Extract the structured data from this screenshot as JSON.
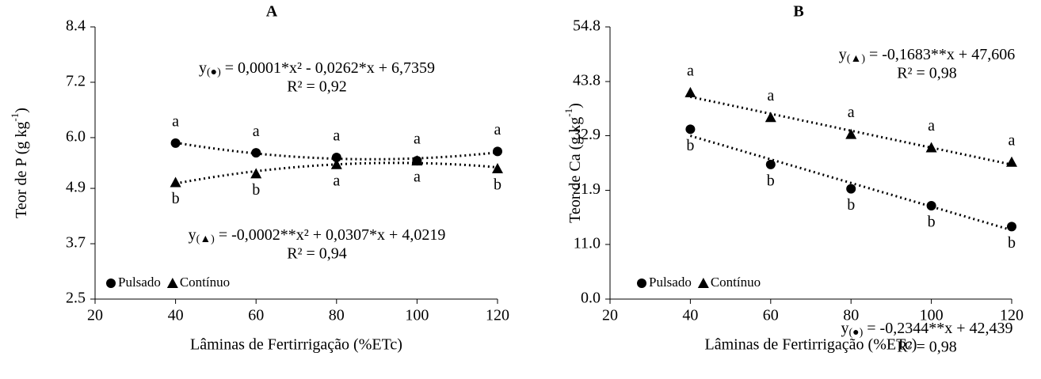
{
  "chart_data": [
    {
      "type": "scatter",
      "title": "A",
      "xlabel": "Lâminas de Fertirrigação (%ETc)",
      "ylabel": "Teor de P (g kg",
      "ylabel_sup": "-1",
      "ylabel_end": ")",
      "x": [
        40,
        60,
        80,
        100,
        120
      ],
      "xlim": [
        20,
        120
      ],
      "xticks": [
        20,
        40,
        60,
        80,
        100,
        120
      ],
      "ylim": [
        2.5,
        8.4
      ],
      "yticks": [
        2.5,
        3.7,
        4.9,
        {
          "value": 6,
          "label": "6.0"
        },
        7.2,
        8.4
      ],
      "trendline": "quadratic",
      "series": [
        {
          "name": "Pulsado",
          "marker": "circle",
          "color": "#000000",
          "values": [
            5.88,
            5.67,
            5.57,
            5.5,
            5.7
          ],
          "labels": [
            "a",
            "a",
            "a",
            "a",
            "a"
          ],
          "label_position": "above"
        },
        {
          "name": "Contínuo",
          "marker": "triangle",
          "color": "#000000",
          "values": [
            5.03,
            5.22,
            5.42,
            5.5,
            5.33
          ],
          "labels": [
            "b",
            "b",
            "a",
            "a",
            "b"
          ],
          "label_position": "below"
        }
      ],
      "annotations": [
        {
          "text": "y",
          "sub": "(●)",
          "rest": " = 0,0001*x² - 0,0262*x + 6,7359",
          "r2": "R² = 0,92"
        },
        {
          "text": "y",
          "sub": "(▲)",
          "rest": " = -0,0002**x² + 0,0307*x + 4,0219",
          "r2": "R² = 0,94"
        }
      ]
    },
    {
      "type": "scatter",
      "title": "B",
      "xlabel": "Lâminas de Fertirrigação (%ETc)",
      "ylabel": "Teor de Ca (g kg",
      "ylabel_sup": "-1",
      "ylabel_end": ")",
      "x": [
        40,
        60,
        80,
        100,
        120
      ],
      "xlim": [
        20,
        120
      ],
      "xticks": [
        20,
        40,
        60,
        80,
        100,
        120
      ],
      "ylim": [
        0,
        54.8
      ],
      "yticks": [
        {
          "value": 0,
          "label": "0.0"
        },
        {
          "value": 11,
          "label": "11.0"
        },
        21.9,
        32.9,
        43.8,
        54.8
      ],
      "trendline": "linear",
      "series": [
        {
          "name": "Pulsado",
          "marker": "circle",
          "color": "#000000",
          "values": [
            34.2,
            27.1,
            22.2,
            18.8,
            14.6
          ],
          "labels": [
            "b",
            "b",
            "b",
            "b",
            "b"
          ],
          "label_position": "below"
        },
        {
          "name": "Contínuo",
          "marker": "triangle",
          "color": "#000000",
          "values": [
            41.6,
            36.6,
            33.2,
            30.5,
            27.6
          ],
          "labels": [
            "a",
            "a",
            "a",
            "a",
            "a"
          ],
          "label_position": "above"
        }
      ],
      "annotations": [
        {
          "text": "y",
          "sub": "(▲)",
          "rest": " = -0,1683**x + 47,606",
          "r2": "R² = 0,98"
        },
        {
          "text": "y",
          "sub": "(●)",
          "rest": " = -0,2344**x + 42,439",
          "r2": "R² = 0,98"
        }
      ]
    }
  ]
}
